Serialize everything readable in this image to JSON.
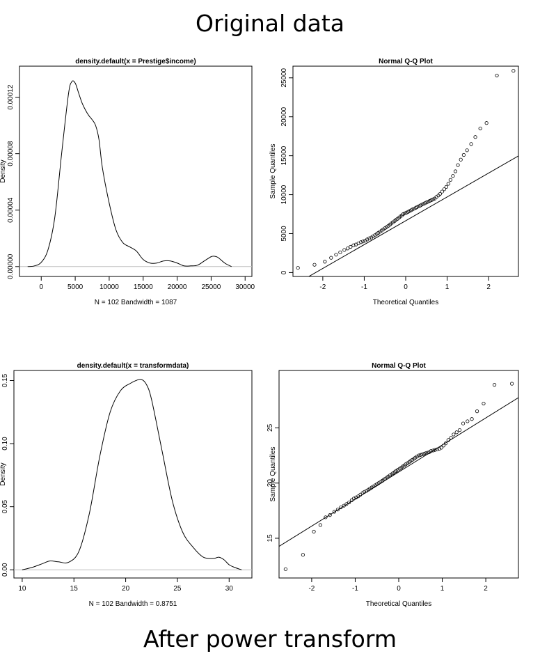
{
  "top_title": "Original data",
  "bottom_title": "After power transform",
  "chart_data": [
    {
      "type": "line",
      "title": "density.default(x = Prestige$income)",
      "xlabel": "N = 102   Bandwidth = 1087",
      "ylabel": "Density",
      "xlim": [
        -3200,
        31000
      ],
      "ylim": [
        -7e-06,
        0.000142
      ],
      "xticks": [
        0,
        5000,
        10000,
        15000,
        20000,
        25000,
        30000
      ],
      "yticks": [
        0.0,
        4e-05,
        8e-05,
        0.00012
      ],
      "xtick_labels": [
        "0",
        "5000",
        "10000",
        "15000",
        "20000",
        "25000",
        "30000"
      ],
      "ytick_labels": [
        "0.00000",
        "0.00004",
        "0.00008",
        "0.00012"
      ],
      "baseline": 0,
      "x": [
        -2000,
        -1000,
        0,
        1000,
        2000,
        3000,
        4000,
        4500,
        5000,
        5500,
        6000,
        6500,
        7000,
        7500,
        8000,
        8500,
        9000,
        10000,
        11000,
        12000,
        13000,
        14000,
        15000,
        16000,
        17000,
        18000,
        19000,
        20000,
        21000,
        22000,
        23000,
        24000,
        25000,
        25500,
        26000,
        27000,
        28000
      ],
      "y": [
        0.0,
        5e-07,
        3e-06,
        1.2e-05,
        3.5e-05,
        8e-05,
        0.000122,
        0.000131,
        0.00013,
        0.000123,
        0.000116,
        0.000111,
        0.000107,
        0.000104,
        0.0001,
        9e-05,
        7e-05,
        4.5e-05,
        2.6e-05,
        1.7e-05,
        1.4e-05,
        1.1e-05,
        5e-06,
        2.5e-06,
        2.5e-06,
        4e-06,
        4e-06,
        2.5e-06,
        5e-07,
        5e-07,
        1e-06,
        4e-06,
        7e-06,
        7.3e-06,
        6.5e-06,
        2.5e-06,
        0.0
      ]
    },
    {
      "type": "scatter",
      "title": "Normal Q-Q Plot",
      "xlabel": "Theoretical Quantiles",
      "ylabel": "Sample Quantiles",
      "xlim": [
        -2.72,
        2.72
      ],
      "ylim": [
        -500,
        26500
      ],
      "xticks": [
        -2,
        -1,
        0,
        1,
        2
      ],
      "yticks": [
        0,
        5000,
        10000,
        15000,
        20000,
        25000
      ],
      "xtick_labels": [
        "-2",
        "-1",
        "0",
        "1",
        "2"
      ],
      "ytick_labels": [
        "0",
        "5000",
        "10000",
        "15000",
        "20000",
        "25000"
      ],
      "reference_line": {
        "slope": 3060,
        "intercept": 6650
      },
      "x": [
        -2.6,
        -2.2,
        -1.95,
        -1.8,
        -1.68,
        -1.58,
        -1.48,
        -1.4,
        -1.33,
        -1.26,
        -1.2,
        -1.14,
        -1.08,
        -1.03,
        -0.98,
        -0.93,
        -0.88,
        -0.83,
        -0.79,
        -0.74,
        -0.7,
        -0.66,
        -0.62,
        -0.58,
        -0.54,
        -0.5,
        -0.46,
        -0.42,
        -0.38,
        -0.35,
        -0.31,
        -0.27,
        -0.24,
        -0.2,
        -0.16,
        -0.13,
        -0.09,
        -0.06,
        -0.02,
        0.02,
        0.06,
        0.09,
        0.13,
        0.16,
        0.2,
        0.24,
        0.27,
        0.31,
        0.35,
        0.38,
        0.42,
        0.46,
        0.5,
        0.54,
        0.58,
        0.62,
        0.66,
        0.7,
        0.74,
        0.79,
        0.83,
        0.88,
        0.93,
        0.98,
        1.03,
        1.08,
        1.14,
        1.2,
        1.26,
        1.33,
        1.4,
        1.48,
        1.58,
        1.68,
        1.8,
        1.95,
        2.2,
        2.6
      ],
      "y": [
        600,
        1000,
        1400,
        1900,
        2300,
        2600,
        2900,
        3100,
        3300,
        3500,
        3600,
        3750,
        3900,
        4000,
        4100,
        4250,
        4400,
        4500,
        4650,
        4800,
        4950,
        5100,
        5250,
        5400,
        5550,
        5700,
        5850,
        6000,
        6150,
        6300,
        6450,
        6600,
        6750,
        6900,
        7050,
        7200,
        7350,
        7500,
        7600,
        7700,
        7800,
        7900,
        8000,
        8100,
        8200,
        8300,
        8400,
        8500,
        8600,
        8700,
        8800,
        8900,
        9000,
        9100,
        9200,
        9300,
        9400,
        9500,
        9700,
        9900,
        10100,
        10400,
        10700,
        11000,
        11400,
        11900,
        12400,
        13000,
        13800,
        14500,
        15100,
        15700,
        16500,
        17400,
        18500,
        19200,
        25300,
        25900
      ]
    },
    {
      "type": "line",
      "title": "density.default(x = transformdata)",
      "xlabel": "N = 102   Bandwidth = 0.8751",
      "ylabel": "Density",
      "xlim": [
        9.2,
        32.2
      ],
      "ylim": [
        -0.0065,
        0.158
      ],
      "xticks": [
        10,
        15,
        20,
        25,
        30
      ],
      "yticks": [
        0.0,
        0.05,
        0.1,
        0.15
      ],
      "xtick_labels": [
        "10",
        "15",
        "20",
        "25",
        "30"
      ],
      "ytick_labels": [
        "0.00",
        "0.05",
        "0.10",
        "0.15"
      ],
      "baseline": 0,
      "x": [
        10.0,
        11.0,
        12.0,
        12.7,
        13.5,
        14.5,
        15.5,
        16.5,
        17.5,
        18.5,
        19.5,
        20.5,
        21.0,
        21.5,
        22.0,
        22.5,
        23.5,
        24.5,
        25.5,
        26.5,
        27.5,
        28.5,
        29.0,
        29.5,
        30.0,
        30.5,
        31.2
      ],
      "y": [
        0.0,
        0.002,
        0.005,
        0.007,
        0.0063,
        0.006,
        0.015,
        0.045,
        0.09,
        0.125,
        0.142,
        0.148,
        0.15,
        0.151,
        0.147,
        0.135,
        0.095,
        0.055,
        0.03,
        0.018,
        0.01,
        0.009,
        0.01,
        0.008,
        0.004,
        0.002,
        0.0
      ]
    },
    {
      "type": "scatter",
      "title": "Normal Q-Q Plot",
      "xlabel": "Theoretical Quantiles",
      "ylabel": "Sample Quantiles",
      "xlim": [
        -2.75,
        2.75
      ],
      "ylim": [
        11.4,
        30.2
      ],
      "xticks": [
        -2,
        -1,
        0,
        1,
        2
      ],
      "yticks": [
        15,
        20,
        25
      ],
      "xtick_labels": [
        "-2",
        "-1",
        "0",
        "1",
        "2"
      ],
      "ytick_labels": [
        "15",
        "20",
        "25"
      ],
      "reference_line": {
        "slope": 2.45,
        "intercept": 21.0
      },
      "x": [
        -2.6,
        -2.2,
        -1.95,
        -1.8,
        -1.68,
        -1.58,
        -1.48,
        -1.4,
        -1.33,
        -1.26,
        -1.2,
        -1.14,
        -1.08,
        -1.03,
        -0.98,
        -0.93,
        -0.88,
        -0.83,
        -0.79,
        -0.74,
        -0.7,
        -0.66,
        -0.62,
        -0.58,
        -0.54,
        -0.5,
        -0.46,
        -0.42,
        -0.38,
        -0.35,
        -0.31,
        -0.27,
        -0.24,
        -0.2,
        -0.16,
        -0.13,
        -0.09,
        -0.06,
        -0.02,
        0.02,
        0.06,
        0.09,
        0.13,
        0.16,
        0.2,
        0.24,
        0.27,
        0.31,
        0.35,
        0.38,
        0.42,
        0.46,
        0.5,
        0.54,
        0.58,
        0.62,
        0.66,
        0.7,
        0.74,
        0.79,
        0.83,
        0.88,
        0.93,
        0.98,
        1.03,
        1.08,
        1.14,
        1.2,
        1.26,
        1.33,
        1.4,
        1.48,
        1.58,
        1.68,
        1.8,
        1.95,
        2.2,
        2.6
      ],
      "y": [
        12.2,
        13.5,
        15.6,
        16.2,
        16.9,
        17.1,
        17.4,
        17.6,
        17.8,
        17.95,
        18.1,
        18.25,
        18.45,
        18.6,
        18.7,
        18.8,
        18.95,
        19.1,
        19.2,
        19.3,
        19.4,
        19.5,
        19.6,
        19.7,
        19.8,
        19.9,
        20.0,
        20.1,
        20.2,
        20.3,
        20.4,
        20.5,
        20.6,
        20.7,
        20.8,
        20.9,
        21.0,
        21.1,
        21.2,
        21.3,
        21.4,
        21.5,
        21.6,
        21.7,
        21.8,
        21.9,
        22.0,
        22.1,
        22.2,
        22.3,
        22.4,
        22.5,
        22.55,
        22.6,
        22.65,
        22.7,
        22.75,
        22.8,
        22.9,
        22.95,
        23.0,
        23.05,
        23.1,
        23.2,
        23.4,
        23.6,
        23.9,
        24.1,
        24.4,
        24.6,
        24.8,
        25.4,
        25.6,
        25.8,
        26.5,
        27.2,
        28.9,
        29.0
      ]
    }
  ]
}
